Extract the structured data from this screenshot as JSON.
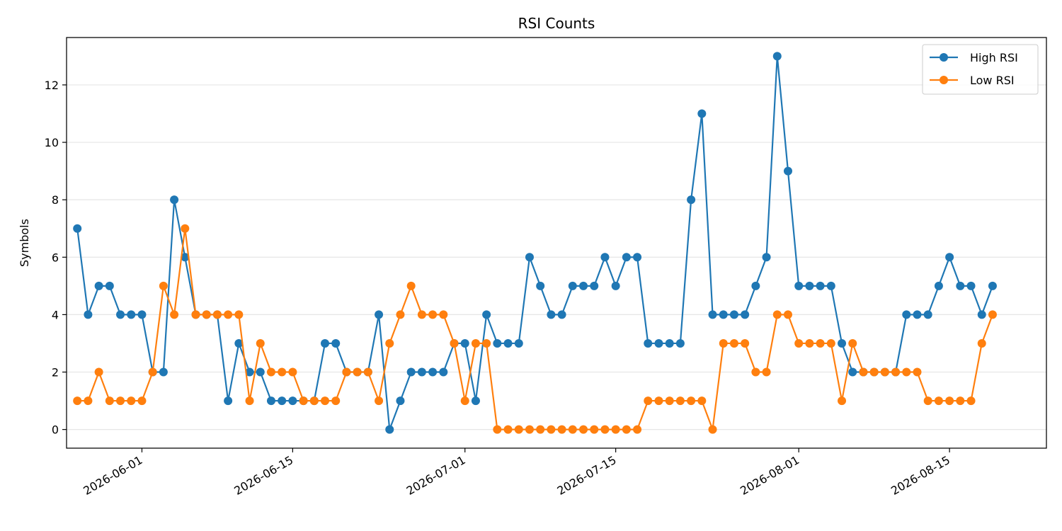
{
  "chart_data": {
    "type": "line",
    "title": "RSI Counts",
    "xlabel": "",
    "ylabel": "Symbols",
    "x_ticks": [
      "2026-06-01",
      "2026-06-15",
      "2026-07-01",
      "2026-07-15",
      "2026-08-01",
      "2026-08-15"
    ],
    "y_ticks": [
      0,
      2,
      4,
      6,
      8,
      10,
      12
    ],
    "xlim": [
      "2026-05-25",
      "2026-08-24"
    ],
    "ylim": [
      -0.65,
      13.65
    ],
    "grid": "y",
    "legend_position": "top-right",
    "x": [
      "2026-05-26",
      "2026-05-27",
      "2026-05-28",
      "2026-05-29",
      "2026-05-30",
      "2026-05-31",
      "2026-06-01",
      "2026-06-02",
      "2026-06-03",
      "2026-06-04",
      "2026-06-05",
      "2026-06-06",
      "2026-06-07",
      "2026-06-08",
      "2026-06-09",
      "2026-06-10",
      "2026-06-11",
      "2026-06-12",
      "2026-06-13",
      "2026-06-14",
      "2026-06-15",
      "2026-06-16",
      "2026-06-17",
      "2026-06-18",
      "2026-06-19",
      "2026-06-20",
      "2026-06-21",
      "2026-06-22",
      "2026-06-23",
      "2026-06-24",
      "2026-06-25",
      "2026-06-26",
      "2026-06-27",
      "2026-06-28",
      "2026-06-29",
      "2026-06-30",
      "2026-07-01",
      "2026-07-02",
      "2026-07-03",
      "2026-07-04",
      "2026-07-05",
      "2026-07-06",
      "2026-07-07",
      "2026-07-08",
      "2026-07-09",
      "2026-07-10",
      "2026-07-11",
      "2026-07-12",
      "2026-07-13",
      "2026-07-14",
      "2026-07-15",
      "2026-07-16",
      "2026-07-17",
      "2026-07-18",
      "2026-07-19",
      "2026-07-20",
      "2026-07-21",
      "2026-07-22",
      "2026-07-23",
      "2026-07-24",
      "2026-07-25",
      "2026-07-26",
      "2026-07-27",
      "2026-07-28",
      "2026-07-29",
      "2026-07-30",
      "2026-07-31",
      "2026-08-01",
      "2026-08-02",
      "2026-08-03",
      "2026-08-04",
      "2026-08-05",
      "2026-08-06",
      "2026-08-07",
      "2026-08-08",
      "2026-08-09",
      "2026-08-10",
      "2026-08-11",
      "2026-08-12",
      "2026-08-13",
      "2026-08-14",
      "2026-08-15",
      "2026-08-16",
      "2026-08-17",
      "2026-08-18",
      "2026-08-19"
    ],
    "series": [
      {
        "name": "High RSI",
        "color": "#1f77b4",
        "values": [
          7,
          4,
          5,
          5,
          4,
          4,
          4,
          2,
          2,
          8,
          6,
          4,
          4,
          4,
          1,
          3,
          2,
          2,
          1,
          1,
          1,
          1,
          1,
          3,
          3,
          2,
          2,
          2,
          4,
          0,
          1,
          2,
          2,
          2,
          2,
          3,
          3,
          1,
          4,
          3,
          3,
          3,
          6,
          5,
          4,
          4,
          5,
          5,
          5,
          6,
          5,
          6,
          6,
          3,
          3,
          3,
          3,
          8,
          11,
          4,
          4,
          4,
          4,
          5,
          6,
          13,
          9,
          5,
          5,
          5,
          5,
          3,
          2,
          2,
          2,
          2,
          2,
          4,
          4,
          4,
          5,
          6,
          5,
          5,
          4,
          5
        ]
      },
      {
        "name": "Low RSI",
        "color": "#ff7f0e",
        "values": [
          1,
          1,
          2,
          1,
          1,
          1,
          1,
          2,
          5,
          4,
          7,
          4,
          4,
          4,
          4,
          4,
          1,
          3,
          2,
          2,
          2,
          1,
          1,
          1,
          1,
          2,
          2,
          2,
          1,
          3,
          4,
          5,
          4,
          4,
          4,
          3,
          1,
          3,
          3,
          0,
          0,
          0,
          0,
          0,
          0,
          0,
          0,
          0,
          0,
          0,
          0,
          0,
          0,
          1,
          1,
          1,
          1,
          1,
          1,
          0,
          3,
          3,
          3,
          2,
          2,
          4,
          4,
          3,
          3,
          3,
          3,
          1,
          3,
          2,
          2,
          2,
          2,
          2,
          2,
          1,
          1,
          1,
          1,
          1,
          3,
          4
        ]
      }
    ]
  }
}
